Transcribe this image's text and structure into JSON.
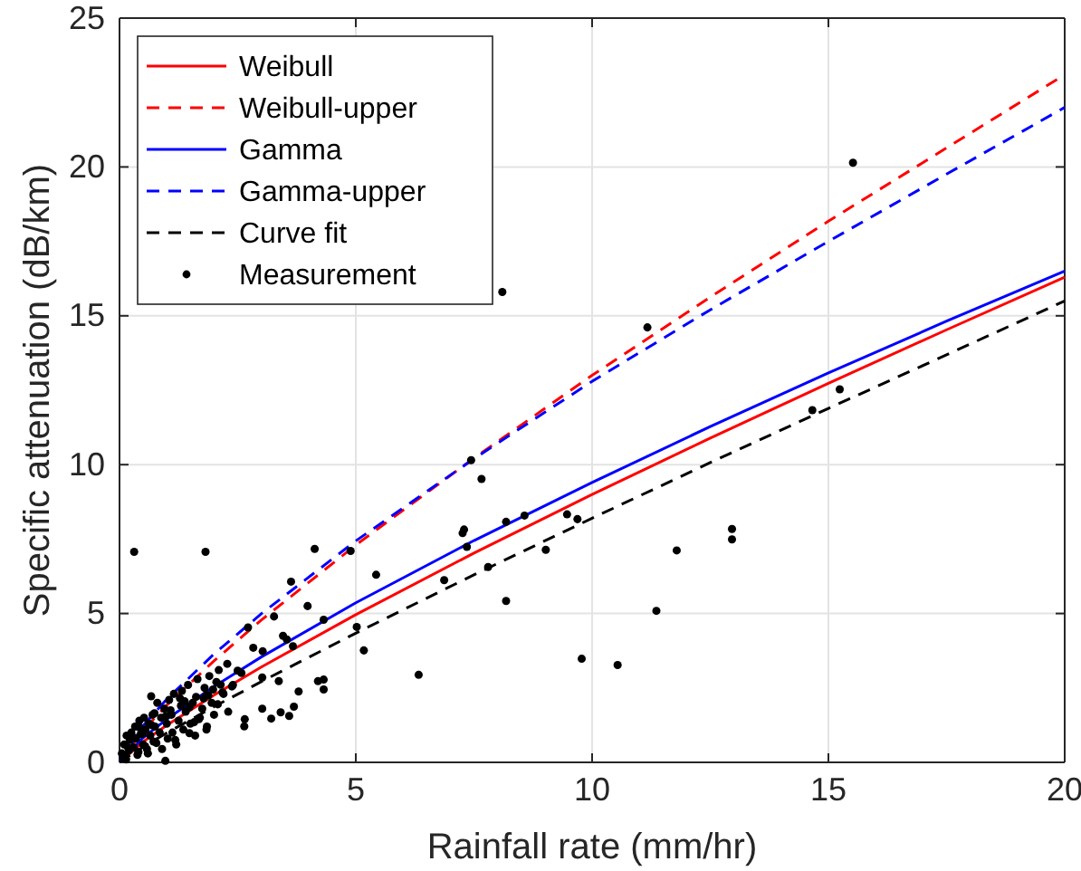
{
  "chart_data": {
    "type": "line",
    "xlabel": "Rainfall rate (mm/hr)",
    "ylabel": "Specific attenuation (dB/km)",
    "xlim": [
      0,
      20
    ],
    "ylim": [
      0,
      25
    ],
    "xticks": [
      0,
      5,
      10,
      15,
      20
    ],
    "yticks": [
      0,
      5,
      10,
      15,
      20,
      25
    ],
    "grid": true,
    "legend": "top left",
    "series": [
      {
        "name": "Weibull",
        "color": "#ff0000",
        "line_style": "solid",
        "x": [
          0,
          0.5,
          1,
          2,
          3,
          5,
          7.5,
          10,
          12.5,
          15,
          17.5,
          20
        ],
        "values": [
          0,
          0.69,
          1.25,
          2.26,
          3.2,
          4.96,
          7.03,
          9.0,
          10.89,
          12.73,
          14.53,
          16.3
        ]
      },
      {
        "name": "Weibull-upper",
        "color": "#ff0000",
        "line_style": "dashed",
        "x": [
          0,
          0.5,
          1,
          2,
          3,
          5,
          7.5,
          10,
          12.5,
          15,
          17.5,
          20
        ],
        "values": [
          0,
          1.08,
          1.92,
          3.41,
          4.78,
          7.3,
          10.22,
          13.0,
          15.63,
          18.18,
          20.64,
          23.1
        ]
      },
      {
        "name": "Gamma",
        "color": "#0000ff",
        "line_style": "solid",
        "x": [
          0,
          0.5,
          1,
          2,
          3,
          5,
          7.5,
          10,
          12.5,
          15,
          17.5,
          20
        ],
        "values": [
          0,
          0.83,
          1.45,
          2.55,
          3.54,
          5.36,
          7.45,
          9.4,
          11.28,
          13.08,
          14.82,
          16.5
        ]
      },
      {
        "name": "Gamma-upper",
        "color": "#0000ff",
        "line_style": "dashed",
        "x": [
          0,
          0.5,
          1,
          2,
          3,
          5,
          7.5,
          10,
          12.5,
          15,
          17.5,
          20
        ],
        "values": [
          0,
          1.23,
          2.12,
          3.64,
          4.99,
          7.44,
          10.2,
          12.8,
          15.2,
          17.5,
          19.76,
          22.0
        ]
      },
      {
        "name": "Curve fit",
        "color": "#000000",
        "line_style": "dashed",
        "x": [
          0,
          0.5,
          1,
          2,
          3,
          5,
          7.5,
          10,
          12.5,
          15,
          17.5,
          20
        ],
        "values": [
          0,
          0.52,
          0.99,
          1.87,
          2.71,
          4.34,
          6.3,
          8.2,
          10.07,
          11.89,
          13.69,
          15.5
        ]
      },
      {
        "name": "Measurement",
        "type": "scatter",
        "color": "#000000",
        "marker": "circle",
        "x": [
          0.31,
          1.82,
          8.1,
          11.17,
          15.52,
          7.44,
          7.66,
          14.66,
          15.24,
          4.13,
          4.89,
          5.43,
          3.63,
          3.98,
          3.27,
          4.32,
          5.02,
          5.17,
          6.33,
          6.87,
          7.26,
          7.29,
          7.35,
          7.8,
          8.18,
          8.57,
          9.02,
          9.47,
          9.69,
          8.18,
          9.78,
          10.54,
          11.36,
          11.79,
          12.96,
          12.96,
          2.72,
          2.83,
          3.03,
          4.32,
          4.32,
          4.2,
          3.79,
          3.69,
          3.59,
          3.41,
          3.21,
          3.02,
          3.02,
          3.37,
          3.54,
          3.67,
          3.46,
          2.65,
          2.64,
          2.5,
          2.28,
          2.14,
          1.84,
          1.84,
          1.48,
          0.97,
          0.67,
          0.05,
          0.1,
          0.12,
          0.15,
          0.2,
          0.22,
          0.25,
          0.3,
          0.33,
          0.35,
          0.4,
          0.42,
          0.45,
          0.5,
          0.52,
          0.55,
          0.6,
          0.62,
          0.65,
          0.7,
          0.72,
          0.75,
          0.8,
          0.85,
          0.88,
          0.9,
          0.95,
          1.0,
          1.02,
          1.05,
          1.1,
          1.12,
          1.15,
          1.2,
          1.25,
          1.3,
          1.32,
          1.35,
          1.4,
          1.45,
          1.5,
          1.55,
          1.6,
          1.62,
          1.65,
          1.7,
          1.75,
          1.8,
          1.85,
          1.9,
          1.95,
          2.0,
          2.05,
          2.1,
          2.2,
          2.3,
          2.4,
          0.08,
          0.18,
          0.28,
          0.38,
          0.48,
          0.58,
          0.68,
          0.78,
          0.98,
          1.18,
          1.38,
          1.58,
          1.78,
          1.98,
          2.18,
          2.38,
          2.58,
          0.14,
          0.44,
          0.74,
          1.08,
          1.28,
          1.48,
          1.68,
          1.88,
          2.08
        ],
        "values": [
          7.07,
          7.07,
          15.8,
          14.61,
          20.14,
          10.15,
          9.52,
          11.83,
          12.53,
          7.17,
          7.1,
          6.3,
          6.07,
          5.25,
          4.9,
          4.79,
          4.55,
          3.76,
          2.94,
          6.12,
          7.7,
          7.82,
          7.24,
          6.56,
          8.08,
          8.29,
          7.14,
          8.33,
          8.17,
          5.42,
          3.48,
          3.27,
          5.09,
          7.12,
          7.84,
          7.49,
          4.53,
          3.85,
          3.73,
          2.78,
          2.45,
          2.73,
          2.38,
          1.87,
          1.56,
          1.68,
          1.47,
          1.8,
          2.85,
          2.73,
          4.13,
          3.9,
          4.25,
          1.45,
          1.21,
          3.08,
          3.31,
          2.61,
          2.26,
          1.1,
          0.98,
          0.05,
          2.22,
          0.3,
          0.6,
          0.2,
          0.9,
          0.4,
          0.75,
          1.0,
          0.5,
          1.2,
          0.8,
          0.35,
          1.4,
          0.95,
          0.6,
          1.5,
          1.1,
          0.3,
          1.3,
          0.9,
          1.6,
          0.7,
          1.2,
          2.0,
          1.0,
          1.5,
          0.45,
          1.8,
          1.3,
          0.8,
          2.1,
          1.6,
          1.0,
          2.3,
          0.6,
          1.4,
          1.9,
          2.4,
          1.1,
          1.7,
          2.6,
          1.3,
          2.0,
          0.9,
          2.2,
          2.8,
          1.5,
          1.8,
          2.5,
          1.2,
          2.9,
          2.0,
          1.6,
          2.7,
          3.1,
          2.3,
          1.7,
          2.6,
          0.15,
          0.5,
          0.85,
          0.25,
          0.95,
          0.45,
          1.25,
          0.65,
          1.55,
          0.75,
          2.05,
          1.35,
          2.15,
          2.45,
          2.35,
          2.55,
          3.0,
          0.1,
          1.15,
          1.65,
          1.75,
          2.15,
          1.85,
          1.45,
          2.25,
          1.95
        ]
      }
    ]
  }
}
